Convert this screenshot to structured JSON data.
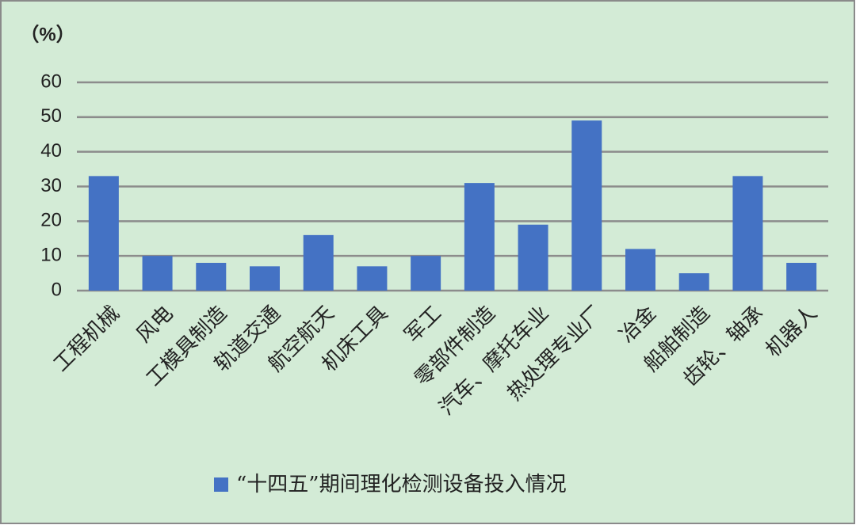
{
  "chart_data": {
    "type": "bar",
    "y_label": "（%）",
    "categories": [
      "工程机械",
      "风电",
      "工模具制造",
      "轨道交通",
      "航空航天",
      "机床工具",
      "军工",
      "零部件制造",
      "汽车、摩托车业",
      "热处理专业厂",
      "冶金",
      "船舶制造",
      "齿轮、轴承",
      "机器人"
    ],
    "series": [
      {
        "name": "“十四五”期间理化检测设备投入情况",
        "color": "#4472c4",
        "values": [
          33,
          10,
          8,
          7,
          16,
          7,
          10,
          31,
          19,
          49,
          12,
          5,
          33,
          8
        ]
      }
    ],
    "ylim": [
      0,
      60
    ],
    "yticks": [
      0,
      10,
      20,
      30,
      40,
      50,
      60
    ],
    "grid": true,
    "legend": "bottom"
  }
}
